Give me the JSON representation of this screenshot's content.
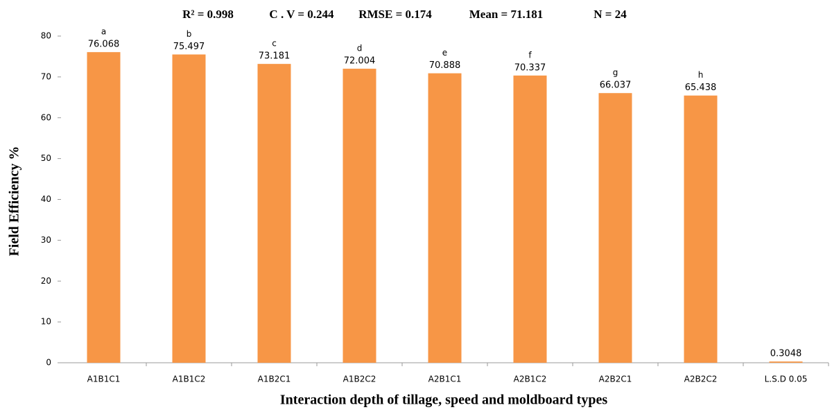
{
  "chart_data": {
    "type": "bar",
    "stats": [
      "R² = 0.998",
      "C . V = 0.244",
      "RMSE = 0.174",
      "Mean = 71.181",
      "N = 24"
    ],
    "xlabel": "Interaction depth of tillage, speed and moldboard types",
    "ylabel": "Field  Efficiency  %",
    "categories": [
      "A1B1C1",
      "A1B1C2",
      "A1B2C1",
      "A1B2C2",
      "A2B1C1",
      "A2B1C2",
      "A2B2C1",
      "A2B2C2",
      "L.S.D 0.05"
    ],
    "values": [
      76.068,
      75.497,
      73.181,
      72.004,
      70.888,
      70.337,
      66.037,
      65.438,
      0.3048
    ],
    "letters": [
      "a",
      "b",
      "c",
      "d",
      "e",
      "f",
      "g",
      "h",
      null
    ],
    "color": "#f79646",
    "ylim": [
      0,
      80
    ],
    "yticks": [
      0,
      10,
      20,
      30,
      40,
      50,
      60,
      70,
      80
    ],
    "grid": false
  }
}
